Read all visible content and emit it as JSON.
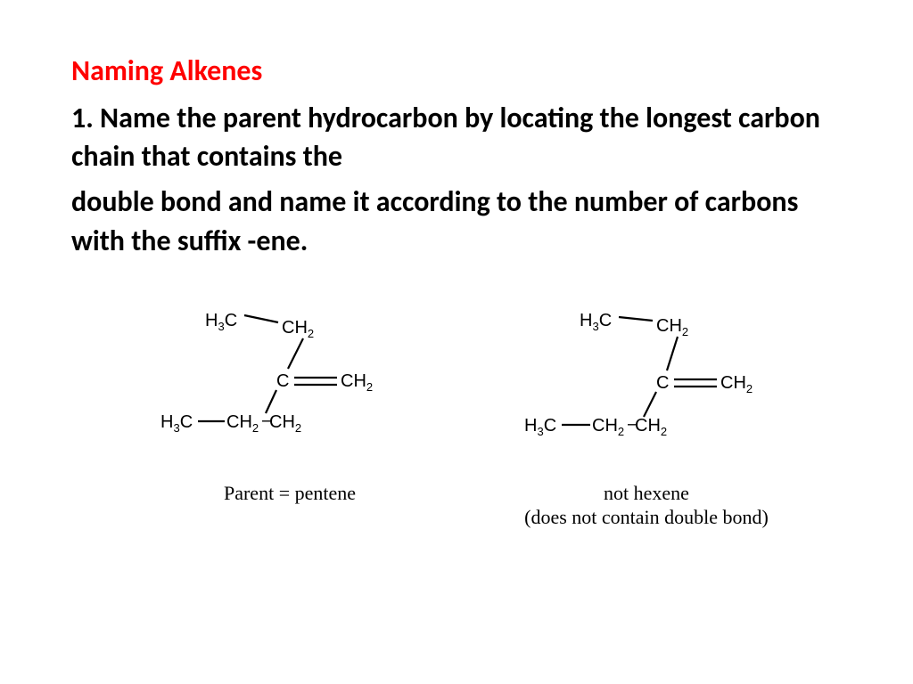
{
  "title": {
    "text": "Naming Alkenes",
    "color": "#ff0000"
  },
  "paragraph1": "1. Name the parent hydrocarbon by locating the longest carbon chain that contains the",
  "paragraph2": "double bond and name it according to the number of carbons with the suffix -ene.",
  "molecules": {
    "left": {
      "caption_line1": "Parent = pentene",
      "caption_line2": ""
    },
    "right": {
      "caption_line1": "not hexene",
      "caption_line2": "(does not contain double bond)"
    }
  },
  "atom_labels": {
    "H3C": {
      "base": "H",
      "sub1": "3",
      "rest": "C"
    },
    "CH2": {
      "base": "CH",
      "sub1": "2"
    },
    "C": {
      "base": "C"
    }
  },
  "styling": {
    "title_fontsize": 32,
    "body_fontsize": 32,
    "body_color": "#000000",
    "caption_font": "Times New Roman",
    "caption_fontsize": 22,
    "atom_fontsize": 20,
    "bond_stroke": "#000000",
    "bond_width": 2.2,
    "background": "#ffffff"
  }
}
